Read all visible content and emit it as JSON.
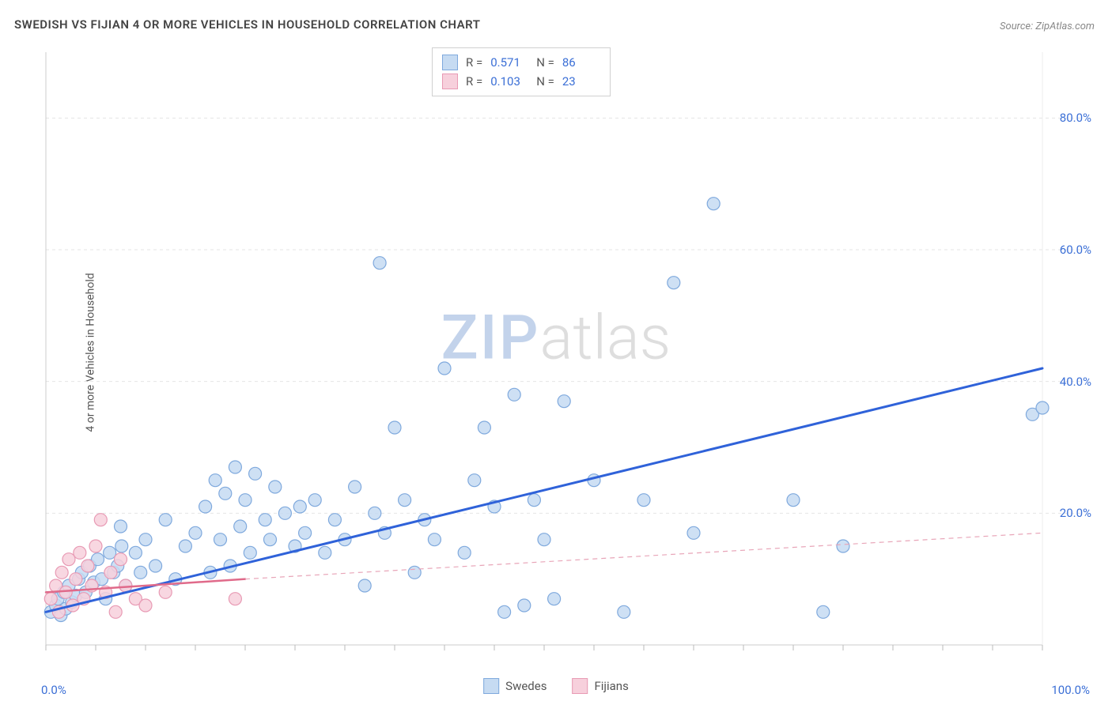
{
  "title": "SWEDISH VS FIJIAN 4 OR MORE VEHICLES IN HOUSEHOLD CORRELATION CHART",
  "source": "Source: ZipAtlas.com",
  "ylabel": "4 or more Vehicles in Household",
  "watermark_zip": "ZIP",
  "watermark_atlas": "atlas",
  "chart": {
    "type": "scatter",
    "xlim": [
      0,
      100
    ],
    "ylim": [
      0,
      90
    ],
    "x_tick_minor_step": 5,
    "y_gridlines": [
      20,
      40,
      60,
      80
    ],
    "x_axis_min_label": "0.0%",
    "x_axis_max_label": "100.0%",
    "y_tick_labels": {
      "20": "20.0%",
      "40": "40.0%",
      "60": "60.0%",
      "80": "80.0%"
    },
    "background_color": "#ffffff",
    "grid_color": "#e5e5e5",
    "grid_dash": "4 4",
    "axis_color": "#cccccc",
    "tick_color": "#bbbbbb",
    "marker_radius": 8,
    "marker_stroke_width": 1.2,
    "series": [
      {
        "name": "Swedes",
        "fill": "#c6dbf2",
        "stroke": "#7fa9dd",
        "r_value": "0.571",
        "n_value": "86",
        "trend": {
          "x1": 0,
          "y1": 5,
          "x2": 100,
          "y2": 42,
          "stroke": "#2f62d9",
          "width": 3,
          "dash": null
        },
        "points": [
          [
            0.5,
            5
          ],
          [
            1,
            6
          ],
          [
            1.2,
            7
          ],
          [
            1.5,
            4.5
          ],
          [
            1.8,
            8
          ],
          [
            2,
            5.5
          ],
          [
            2.3,
            9
          ],
          [
            2.6,
            6.5
          ],
          [
            3,
            7.5
          ],
          [
            3.3,
            10
          ],
          [
            3.6,
            11
          ],
          [
            4,
            8
          ],
          [
            4.4,
            12
          ],
          [
            4.8,
            9.5
          ],
          [
            5.2,
            13
          ],
          [
            5.6,
            10
          ],
          [
            6,
            7
          ],
          [
            6.4,
            14
          ],
          [
            6.8,
            11
          ],
          [
            7.2,
            12
          ],
          [
            7.5,
            18
          ],
          [
            7.6,
            15
          ],
          [
            8,
            9
          ],
          [
            9,
            14
          ],
          [
            9.5,
            11
          ],
          [
            10,
            16
          ],
          [
            11,
            12
          ],
          [
            12,
            19
          ],
          [
            13,
            10
          ],
          [
            14,
            15
          ],
          [
            15,
            17
          ],
          [
            16,
            21
          ],
          [
            16.5,
            11
          ],
          [
            17,
            25
          ],
          [
            17.5,
            16
          ],
          [
            18,
            23
          ],
          [
            18.5,
            12
          ],
          [
            19,
            27
          ],
          [
            19.5,
            18
          ],
          [
            20,
            22
          ],
          [
            20.5,
            14
          ],
          [
            21,
            26
          ],
          [
            22,
            19
          ],
          [
            22.5,
            16
          ],
          [
            23,
            24
          ],
          [
            24,
            20
          ],
          [
            25,
            15
          ],
          [
            25.5,
            21
          ],
          [
            26,
            17
          ],
          [
            27,
            22
          ],
          [
            28,
            14
          ],
          [
            29,
            19
          ],
          [
            30,
            16
          ],
          [
            31,
            24
          ],
          [
            32,
            9
          ],
          [
            33,
            20
          ],
          [
            33.5,
            58
          ],
          [
            34,
            17
          ],
          [
            35,
            33
          ],
          [
            36,
            22
          ],
          [
            37,
            11
          ],
          [
            38,
            19
          ],
          [
            39,
            16
          ],
          [
            40,
            42
          ],
          [
            42,
            14
          ],
          [
            43,
            25
          ],
          [
            44,
            33
          ],
          [
            45,
            21
          ],
          [
            46,
            5
          ],
          [
            47,
            38
          ],
          [
            48,
            6
          ],
          [
            49,
            22
          ],
          [
            50,
            16
          ],
          [
            51,
            7
          ],
          [
            52,
            37
          ],
          [
            55,
            25
          ],
          [
            58,
            5
          ],
          [
            60,
            22
          ],
          [
            63,
            55
          ],
          [
            65,
            17
          ],
          [
            67,
            67
          ],
          [
            75,
            22
          ],
          [
            78,
            5
          ],
          [
            80,
            15
          ],
          [
            99,
            35
          ],
          [
            100,
            36
          ]
        ]
      },
      {
        "name": "Fijians",
        "fill": "#f7d0dc",
        "stroke": "#e89ab4",
        "r_value": "0.103",
        "n_value": "23",
        "trend": {
          "x1": 0,
          "y1": 8,
          "x2": 20,
          "y2": 10,
          "stroke": "#e06a8a",
          "width": 2.5,
          "dash": null
        },
        "trend_ext": {
          "x1": 20,
          "y1": 10,
          "x2": 100,
          "y2": 17,
          "stroke": "#e8a5b8",
          "width": 1.2,
          "dash": "6 5"
        },
        "points": [
          [
            0.5,
            7
          ],
          [
            1,
            9
          ],
          [
            1.3,
            5
          ],
          [
            1.6,
            11
          ],
          [
            2,
            8
          ],
          [
            2.3,
            13
          ],
          [
            2.7,
            6
          ],
          [
            3,
            10
          ],
          [
            3.4,
            14
          ],
          [
            3.8,
            7
          ],
          [
            4.2,
            12
          ],
          [
            4.6,
            9
          ],
          [
            5,
            15
          ],
          [
            5.5,
            19
          ],
          [
            6,
            8
          ],
          [
            6.5,
            11
          ],
          [
            7,
            5
          ],
          [
            7.5,
            13
          ],
          [
            8,
            9
          ],
          [
            9,
            7
          ],
          [
            10,
            6
          ],
          [
            12,
            8
          ],
          [
            19,
            7
          ]
        ]
      }
    ]
  },
  "legend_top": {
    "r_label": "R =",
    "n_label": "N ="
  },
  "legend_bottom": {
    "items": [
      "Swedes",
      "Fijians"
    ]
  }
}
